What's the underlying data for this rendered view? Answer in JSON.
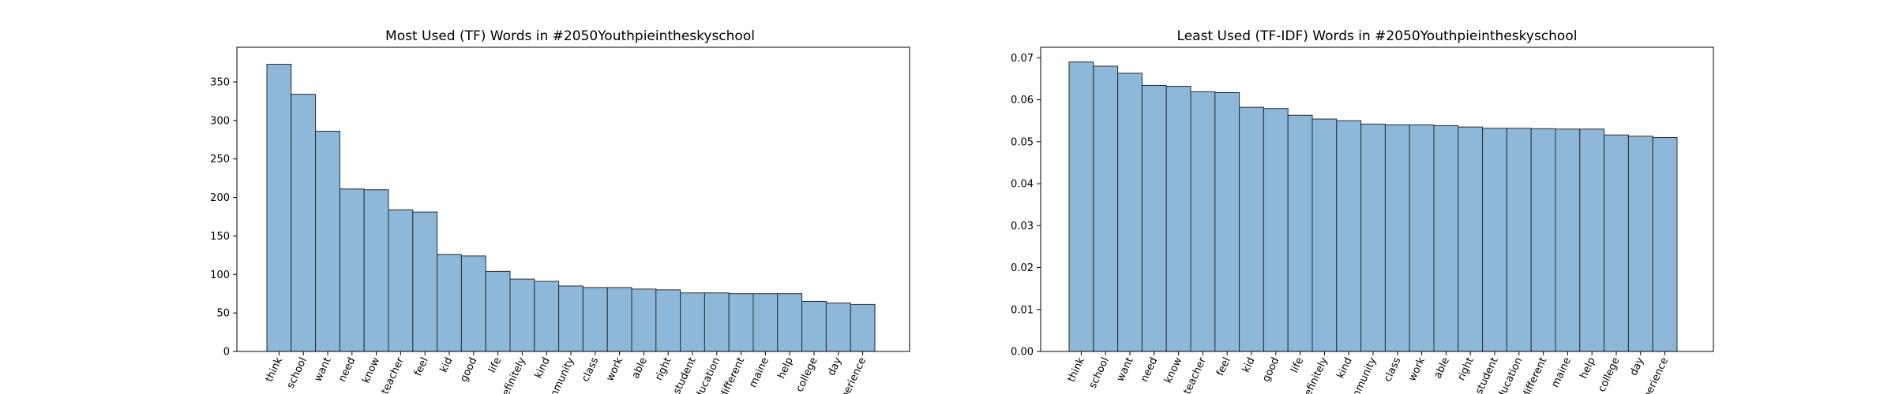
{
  "chart_data": [
    {
      "type": "bar",
      "title": "Most Used (TF) Words in #2050Youthpieintheskyschool",
      "xlabel": "",
      "ylabel": "",
      "ylim": [
        0,
        395
      ],
      "yticks": [
        "0",
        "50",
        "100",
        "150",
        "200",
        "250",
        "300",
        "350"
      ],
      "grid": false,
      "bar_color": "#8db8da",
      "edge_color": "#2b2b2b",
      "categories": [
        "think",
        "school",
        "want",
        "need",
        "know",
        "teacher",
        "feel",
        "kid",
        "good",
        "life",
        "definitely",
        "kind",
        "community",
        "class",
        "work",
        "able",
        "right",
        "student",
        "education",
        "different",
        "maine",
        "help",
        "college",
        "day",
        "experience"
      ],
      "values": [
        373,
        334,
        286,
        211,
        210,
        184,
        181,
        126,
        124,
        104,
        94,
        91,
        85,
        83,
        83,
        81,
        80,
        76,
        76,
        75,
        75,
        75,
        65,
        63,
        61
      ]
    },
    {
      "type": "bar",
      "title": "Least Used (TF-IDF) Words in #2050Youthpieintheskyschool",
      "xlabel": "",
      "ylabel": "",
      "ylim": [
        0,
        0.0725
      ],
      "yticks": [
        "0.00",
        "0.01",
        "0.02",
        "0.03",
        "0.04",
        "0.05",
        "0.06",
        "0.07"
      ],
      "grid": false,
      "bar_color": "#8db8da",
      "edge_color": "#2b2b2b",
      "categories": [
        "think",
        "school",
        "want",
        "need",
        "know",
        "teacher",
        "feel",
        "kid",
        "good",
        "life",
        "definitely",
        "kind",
        "community",
        "class",
        "work",
        "able",
        "right",
        "student",
        "education",
        "different",
        "maine",
        "help",
        "college",
        "day",
        "experience"
      ],
      "values": [
        0.069,
        0.068,
        0.0663,
        0.0634,
        0.0632,
        0.0619,
        0.0617,
        0.0582,
        0.0579,
        0.0563,
        0.0554,
        0.055,
        0.0542,
        0.054,
        0.054,
        0.0538,
        0.0535,
        0.0532,
        0.0532,
        0.0531,
        0.053,
        0.053,
        0.0516,
        0.0513,
        0.051
      ]
    }
  ]
}
